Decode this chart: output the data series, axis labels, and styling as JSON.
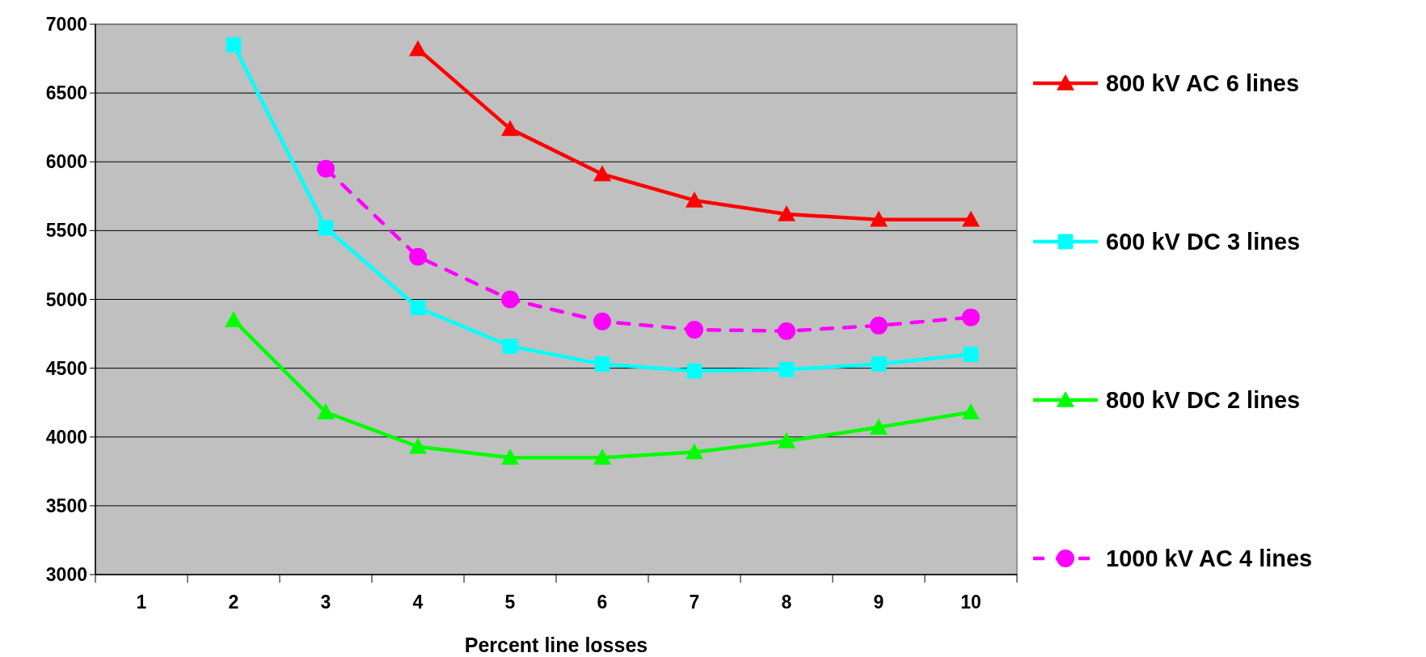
{
  "chart_data": {
    "type": "line",
    "xlabel": "Percent line losses",
    "categories": [
      "1",
      "2",
      "3",
      "4",
      "5",
      "6",
      "7",
      "8",
      "9",
      "10"
    ],
    "ylim": [
      3000,
      7000
    ],
    "yticks": [
      3000,
      3500,
      4000,
      4500,
      5000,
      5500,
      6000,
      6500,
      7000
    ],
    "grid": "y",
    "legend": "right",
    "series": [
      {
        "name": "800 kV AC 6 lines",
        "color": "#ff0000",
        "marker": "triangle",
        "line_style": "solid",
        "values": [
          null,
          null,
          null,
          6820,
          6240,
          5910,
          5720,
          5620,
          5580,
          5580
        ]
      },
      {
        "name": "600 kV DC  3 lines",
        "color": "#00ffff",
        "marker": "square",
        "line_style": "solid",
        "values": [
          null,
          6850,
          5520,
          4940,
          4660,
          4530,
          4480,
          4490,
          4530,
          4600
        ]
      },
      {
        "name": "800 kV DC  2 lines",
        "color": "#00ff00",
        "marker": "triangle",
        "line_style": "solid",
        "values": [
          null,
          4850,
          4180,
          3930,
          3850,
          3850,
          3890,
          3970,
          4070,
          4180
        ]
      },
      {
        "name": "1000 kV AC 4 lines",
        "color": "#ff00ff",
        "marker": "circle",
        "line_style": "dashed",
        "values": [
          null,
          null,
          5950,
          5310,
          5000,
          4840,
          4780,
          4770,
          4810,
          4870
        ]
      }
    ]
  }
}
